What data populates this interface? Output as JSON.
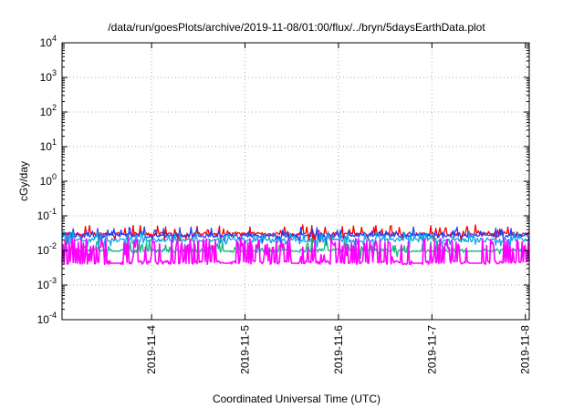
{
  "chart_data": {
    "type": "line",
    "title": "/data/run/goesPlots/archive/2019-11-08/01:00/flux/../bryn/5daysEarthData.plot",
    "xlabel": "Coordinated Universal Time (UTC)",
    "ylabel": "cGy/day",
    "x_range": [
      "2019-11-03T01:00",
      "2019-11-08T01:00"
    ],
    "x_ticks": [
      "2019-11-4",
      "2019-11-5",
      "2019-11-6",
      "2019-11-7",
      "2019-11-8"
    ],
    "y_scale": "log",
    "ylim": [
      0.0001,
      10000
    ],
    "y_ticks": [
      {
        "base": "10",
        "exp": "4"
      },
      {
        "base": "10",
        "exp": "3"
      },
      {
        "base": "10",
        "exp": "2"
      },
      {
        "base": "10",
        "exp": "1"
      },
      {
        "base": "10",
        "exp": "0"
      },
      {
        "base": "10",
        "exp": "-1"
      },
      {
        "base": "10",
        "exp": "-2"
      },
      {
        "base": "10",
        "exp": "-3"
      },
      {
        "base": "10",
        "exp": "-4"
      }
    ],
    "grid": true,
    "legend": "none",
    "series": [
      {
        "color": "#ff0000",
        "baseline": 0.03,
        "spike_max": 0.055
      },
      {
        "color": "#1e40ff",
        "baseline": 0.027,
        "spike_max": 0.06
      },
      {
        "color": "#0ea5e9",
        "baseline": 0.02,
        "spike_max": 0.035
      },
      {
        "color": "#10b981",
        "baseline": 0.01,
        "spike_max": 0.025
      },
      {
        "color": "#ff00ff",
        "baseline": 0.0045,
        "spike_max": 0.022
      }
    ]
  }
}
